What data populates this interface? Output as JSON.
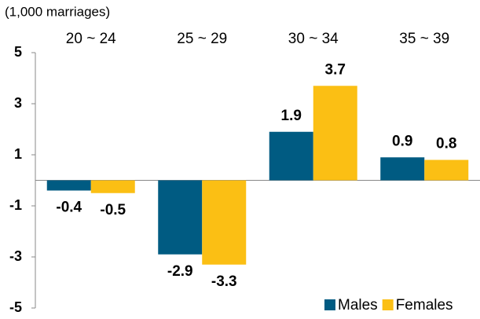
{
  "chart_data": {
    "type": "bar",
    "unit_label": "(1,000 marriages)",
    "categories": [
      "20 ~ 24",
      "25 ~ 29",
      "30 ~ 34",
      "35 ~ 39"
    ],
    "series": [
      {
        "name": "Males",
        "color": "#005b82",
        "values": [
          -0.4,
          -2.9,
          1.9,
          0.9
        ]
      },
      {
        "name": "Females",
        "color": "#fbbf14",
        "values": [
          -0.5,
          -3.3,
          3.7,
          0.8
        ]
      }
    ],
    "ylim": [
      -5,
      5
    ],
    "yticks": [
      5,
      3,
      1,
      -1,
      -3,
      -5
    ],
    "legend": "bottom-right"
  }
}
